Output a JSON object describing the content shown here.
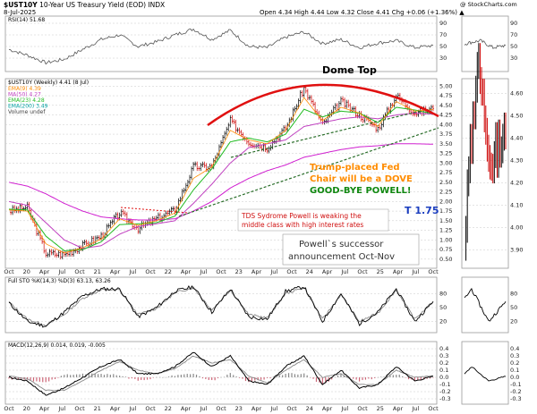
{
  "header": {
    "symbol": "$UST10Y",
    "description": "10-Year US Treasury Yield (EOD)",
    "exchange": "INDX",
    "date": "8-Jul-2025",
    "quote": "Open 4.34  High 4.44  Low 4.32  Close 4.41  Chg +0.06 (+1.36%) ▲",
    "copyright": "@ StockCharts.com"
  },
  "colors": {
    "rsi_line": "#555555",
    "price_up": "#000000",
    "price_down": "#cc0000",
    "ema9": "#ff8c00",
    "ma50": "#c040c0",
    "ema23": "#22bb22",
    "ema200": "#00a0a0",
    "ma200": "#d020d0",
    "dome": "#e01010",
    "trend": "#2a6e2a",
    "sto_fast": "#000000",
    "sto_slow": "#888888",
    "macd_hist_pos": "#888888",
    "macd_hist_neg": "#cc6677"
  },
  "annotations": {
    "dome_top": "Dome Top",
    "fed_chair_line1": "Trump-placed Fed",
    "fed_chair_line2": "Chair will be a DOVE",
    "goodbye": "GOOD-BYE POWELL!",
    "target": "T 1.75",
    "tds_line1": "TDS Sydrome Powell is weaking the",
    "tds_line2": "middle class with high interest rates",
    "successor_line1": "Powell`s successor",
    "successor_line2": "announcement Oct-Nov"
  },
  "chart_data": [
    {
      "type": "line",
      "panel": "rsi",
      "title": "RSI(14) 51.68",
      "y_ticks": [
        30,
        50,
        70,
        90
      ],
      "ylim": [
        10,
        90
      ],
      "x": [
        "Oct-19",
        "Jan-20",
        "Apr-20",
        "Jul-20",
        "Oct-20",
        "Jan-21",
        "Apr-21",
        "Jul-21",
        "Oct-21",
        "Jan-22",
        "Apr-22",
        "Jul-22",
        "Oct-22",
        "Jan-23",
        "Apr-23",
        "Jul-23",
        "Oct-23",
        "Jan-24",
        "Apr-24",
        "Jul-24",
        "Oct-24",
        "Jan-25",
        "Apr-25",
        "Jul-25"
      ],
      "series": [
        {
          "name": "RSI(14)",
          "values": [
            45,
            35,
            22,
            28,
            45,
            62,
            70,
            50,
            58,
            70,
            80,
            62,
            78,
            50,
            48,
            66,
            75,
            55,
            62,
            48,
            56,
            60,
            48,
            52
          ]
        }
      ]
    },
    {
      "type": "line",
      "panel": "price",
      "title": "$UST10Y (Weekly) 4.41 (8 Jul)",
      "legend": [
        "EMA(9) 4.39",
        "MA(50) 4.27",
        "EMA(23) 4.28",
        "EMA(200) 3.49",
        "Volume undef"
      ],
      "y_ticks": [
        0.5,
        0.75,
        1.0,
        1.25,
        1.5,
        1.75,
        2.0,
        2.25,
        2.5,
        2.75,
        3.0,
        3.25,
        3.5,
        3.75,
        4.0,
        4.25,
        4.5,
        4.75,
        5.0
      ],
      "ylim": [
        0.45,
        5.1
      ],
      "x": [
        "Oct-19",
        "Jan-20",
        "Apr-20",
        "Jul-20",
        "Oct-20",
        "Jan-21",
        "Apr-21",
        "Jul-21",
        "Oct-21",
        "Jan-22",
        "Apr-22",
        "Jul-22",
        "Oct-22",
        "Jan-23",
        "Apr-23",
        "Jul-23",
        "Oct-23",
        "Jan-24",
        "Apr-24",
        "Jul-24",
        "Oct-24",
        "Jan-25",
        "Apr-25",
        "Jul-25"
      ],
      "x_labels": [
        "Oct",
        "20",
        "Apr",
        "Jul",
        "Oct",
        "21",
        "Apr",
        "Jul",
        "Oct",
        "22",
        "Apr",
        "Jul",
        "Oct",
        "23",
        "Apr",
        "Jul",
        "Oct",
        "24",
        "Apr",
        "Jul",
        "Oct",
        "25",
        "Apr",
        "Jul",
        "Oct"
      ],
      "series": [
        {
          "name": "$UST10Y",
          "values": [
            1.75,
            1.85,
            0.65,
            0.62,
            0.85,
            1.1,
            1.7,
            1.3,
            1.55,
            1.78,
            2.9,
            2.9,
            4.1,
            3.55,
            3.4,
            3.9,
            4.95,
            4.0,
            4.6,
            4.25,
            3.9,
            4.75,
            4.3,
            4.41
          ]
        },
        {
          "name": "EMA(9)",
          "values": [
            1.78,
            1.75,
            0.9,
            0.66,
            0.8,
            1.02,
            1.55,
            1.38,
            1.5,
            1.7,
            2.6,
            2.9,
            3.85,
            3.6,
            3.5,
            3.85,
            4.7,
            4.1,
            4.45,
            4.3,
            3.95,
            4.6,
            4.35,
            4.39
          ]
        },
        {
          "name": "EMA(23)",
          "values": [
            1.8,
            1.78,
            1.1,
            0.72,
            0.75,
            0.95,
            1.4,
            1.42,
            1.45,
            1.62,
            2.3,
            2.85,
            3.55,
            3.65,
            3.55,
            3.75,
            4.4,
            4.2,
            4.35,
            4.3,
            4.05,
            4.45,
            4.38,
            4.28
          ]
        },
        {
          "name": "MA(50)",
          "values": [
            2.0,
            1.9,
            1.45,
            1.0,
            0.78,
            0.85,
            1.15,
            1.35,
            1.42,
            1.5,
            1.95,
            2.45,
            3.0,
            3.4,
            3.5,
            3.6,
            3.95,
            4.05,
            4.15,
            4.2,
            4.15,
            4.25,
            4.3,
            4.27
          ]
        },
        {
          "name": "EMA(200)",
          "values": [
            2.5,
            2.4,
            2.2,
            1.95,
            1.75,
            1.6,
            1.55,
            1.52,
            1.52,
            1.55,
            1.75,
            2.0,
            2.35,
            2.6,
            2.8,
            2.95,
            3.15,
            3.25,
            3.35,
            3.42,
            3.45,
            3.5,
            3.5,
            3.49
          ]
        }
      ]
    },
    {
      "type": "line",
      "panel": "sto",
      "title": "Full STO %K(14,3) %D(3) 63.13, 63.26",
      "y_ticks": [
        20,
        50,
        80
      ],
      "ylim": [
        0,
        100
      ],
      "series": [
        {
          "name": "%K",
          "values": [
            60,
            20,
            10,
            40,
            75,
            90,
            90,
            30,
            50,
            85,
            95,
            40,
            90,
            30,
            25,
            85,
            95,
            20,
            80,
            15,
            40,
            90,
            20,
            63
          ]
        },
        {
          "name": "%D",
          "values": [
            62,
            25,
            12,
            35,
            70,
            88,
            88,
            35,
            48,
            82,
            93,
            45,
            88,
            35,
            28,
            80,
            93,
            25,
            78,
            20,
            38,
            88,
            25,
            63
          ]
        }
      ]
    },
    {
      "type": "bar",
      "panel": "macd",
      "title": "MACD(12,26,9) 0.014, 0.019, -0.005",
      "y_ticks": [
        -0.3,
        -0.2,
        -0.1,
        0.0,
        0.1,
        0.2,
        0.3,
        0.4
      ],
      "ylim": [
        -0.35,
        0.45
      ],
      "series": [
        {
          "name": "MACD",
          "values": [
            0.0,
            -0.05,
            -0.25,
            -0.15,
            0.0,
            0.15,
            0.25,
            0.05,
            0.05,
            0.15,
            0.35,
            0.15,
            0.3,
            -0.05,
            -0.1,
            0.15,
            0.3,
            -0.1,
            0.1,
            -0.15,
            -0.1,
            0.15,
            -0.05,
            0.014
          ]
        },
        {
          "name": "Signal",
          "values": [
            0.02,
            -0.02,
            -0.18,
            -0.18,
            -0.05,
            0.1,
            0.22,
            0.1,
            0.05,
            0.12,
            0.3,
            0.2,
            0.25,
            0.02,
            -0.08,
            0.1,
            0.25,
            0.0,
            0.05,
            -0.1,
            -0.1,
            0.1,
            0.0,
            0.019
          ]
        },
        {
          "name": "Histogram",
          "values": [
            -0.02,
            -0.03,
            -0.07,
            0.03,
            0.05,
            0.05,
            0.03,
            -0.05,
            0.0,
            0.03,
            0.05,
            -0.05,
            0.05,
            -0.07,
            -0.02,
            0.05,
            0.05,
            -0.1,
            0.05,
            -0.05,
            0.0,
            0.05,
            -0.05,
            -0.005
          ]
        }
      ]
    }
  ]
}
